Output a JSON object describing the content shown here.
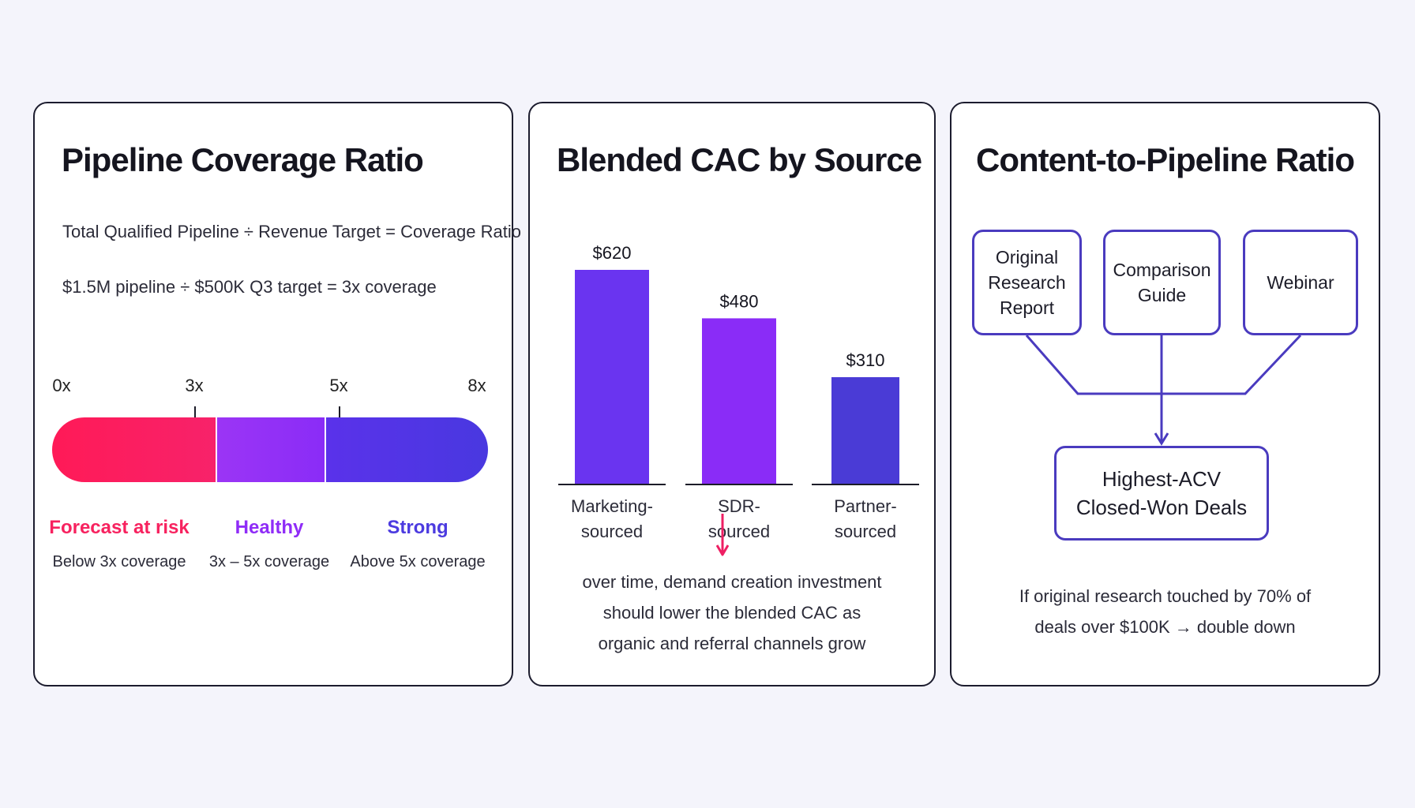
{
  "colors": {
    "at_risk": "#f7225f",
    "healthy": "#8f2cf7",
    "strong": "#4c3be0",
    "marketing_bar": "#6a34f0",
    "sdr_bar": "#8a2cf7",
    "partner_bar": "#4a3bd6",
    "flow_line": "#4a3bbf",
    "arrow_accent": "#ee1f63"
  },
  "coverage": {
    "title": "Pipeline Coverage Ratio",
    "formula": "Total Qualified Pipeline ÷ Revenue Target = Coverage Ratio",
    "example": "$1.5M pipeline ÷ $500K Q3 target = 3x coverage",
    "scale": {
      "min": 0,
      "max": 8,
      "ticks": [
        {
          "value": 0,
          "label": "0x"
        },
        {
          "value": 3,
          "label": "3x"
        },
        {
          "value": 5,
          "label": "5x"
        },
        {
          "value": 8,
          "label": "8x"
        }
      ]
    },
    "zones": [
      {
        "from": 0,
        "to": 3,
        "label": "Forecast at risk",
        "desc": "Below 3x coverage"
      },
      {
        "from": 3,
        "to": 5,
        "label": "Healthy",
        "desc": "3x – 5x coverage"
      },
      {
        "from": 5,
        "to": 8,
        "label": "Strong",
        "desc": "Above 5x coverage"
      }
    ]
  },
  "chart_data": {
    "type": "bar",
    "title": "Blended CAC by Source",
    "categories": [
      "Marketing-\nsourced",
      "SDR-\nsourced",
      "Partner-\nsourced"
    ],
    "values": [
      620,
      480,
      310
    ],
    "value_labels": [
      "$620",
      "$480",
      "$310"
    ],
    "ylim": [
      0,
      620
    ],
    "grid": false,
    "legend": "none"
  },
  "cac_note": {
    "line1": "over time, demand creation investment",
    "line2": "should lower the blended CAC as",
    "line3": "organic and referral channels grow"
  },
  "content": {
    "title": "Content-to-Pipeline Ratio",
    "sources": {
      "original": "Original\nResearch\nReport",
      "comparison": "Comparison\nGuide",
      "webinar": "Webinar"
    },
    "result": "Highest-ACV\nClosed-Won Deals",
    "insight_line1": "If original research touched by 70% of",
    "insight_line2": "deals over $100K → double down"
  }
}
